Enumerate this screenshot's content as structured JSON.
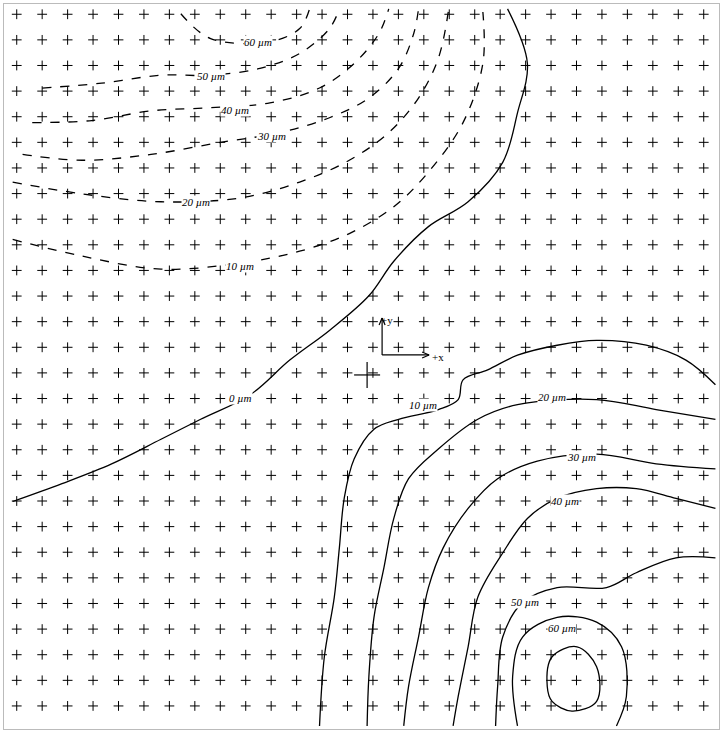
{
  "chart_data": {
    "type": "line",
    "grid": true,
    "tick_labels": false,
    "xlim": [
      -14.5,
      13.6
    ],
    "ylim": [
      -13.9,
      14.4
    ],
    "xticks": [
      -14,
      -13,
      -12,
      -11,
      -10,
      -9,
      -8,
      -7,
      -6,
      -5,
      -4,
      -3,
      -2,
      -1,
      0,
      1,
      2,
      3,
      4,
      5,
      6,
      7,
      8,
      9,
      10,
      11,
      12,
      13
    ],
    "yticks": [
      -13,
      -12,
      -11,
      -10,
      -9,
      -8,
      -7,
      -6,
      -5,
      -4,
      -3,
      -2,
      -1,
      0,
      1,
      2,
      3,
      4,
      5,
      6,
      7,
      8,
      9,
      10,
      11,
      12,
      13,
      14
    ],
    "origin": [
      -0.23,
      -0.08
    ],
    "axis_labels": [
      {
        "text": "+y",
        "x": 0.54,
        "y": 2.05
      },
      {
        "text": "+x",
        "x": 2.57,
        "y": 0.62
      }
    ],
    "series": [
      {
        "name": "0 µm",
        "line_style": "solid",
        "color": "#000000",
        "label_x": -5.21,
        "label_y": -0.97,
        "x": [
          -14.16,
          -12.22,
          -10.27,
          -8.33,
          -6.77,
          -4.82,
          -3.27,
          -1.71,
          -0.16,
          0.82,
          2.18,
          3.74,
          5.1,
          5.68,
          6.07,
          5.29
        ],
        "y": [
          -5.02,
          -4.32,
          -3.55,
          -2.59,
          -1.81,
          -0.85,
          0.5,
          1.66,
          3.01,
          4.36,
          5.71,
          6.68,
          8.22,
          10.15,
          12.08,
          14.21
        ]
      },
      {
        "name": "10 µm",
        "line_style": "solid",
        "color": "#000000",
        "label_x": 1.98,
        "label_y": -1.24,
        "x": [
          13.46,
          12.3,
          10.74,
          8.79,
          7.24,
          5.68,
          4.51,
          3.54,
          3.35,
          2.57,
          1.01,
          0.04,
          -0.74,
          -1.13,
          -1.32,
          -1.52,
          -1.91,
          -2.1
        ],
        "y": [
          -0.46,
          0.5,
          1.08,
          1.27,
          1.08,
          0.69,
          0.12,
          -0.27,
          -1.04,
          -1.43,
          -1.81,
          -2.2,
          -3.36,
          -4.9,
          -6.83,
          -8.76,
          -11.08,
          -13.78
        ]
      },
      {
        "name": "20 µm",
        "line_style": "solid",
        "color": "#000000",
        "label_x": 7.04,
        "label_y": -0.93,
        "x": [
          13.46,
          11.13,
          8.79,
          5.68,
          4.12,
          2.57,
          1.4,
          0.82,
          0.43,
          0.04,
          -0.16,
          -0.23
        ],
        "y": [
          -1.81,
          -1.43,
          -1.04,
          -1.24,
          -1.81,
          -2.97,
          -4.13,
          -5.68,
          -7.61,
          -9.54,
          -11.85,
          -13.78
        ]
      },
      {
        "name": "30 µm",
        "line_style": "solid",
        "color": "#000000",
        "label_x": 8.21,
        "label_y": -3.28,
        "x": [
          13.46,
          11.13,
          8.79,
          6.46,
          4.9,
          3.74,
          2.76,
          2.18,
          1.79,
          1.4,
          1.21
        ],
        "y": [
          -3.75,
          -3.55,
          -3.17,
          -3.44,
          -4.13,
          -5.29,
          -6.83,
          -8.38,
          -10.31,
          -12.24,
          -13.78
        ]
      },
      {
        "name": "40 µm",
        "line_style": "solid",
        "color": "#000000",
        "label_x": 7.55,
        "label_y": -5.0,
        "x": [
          13.46,
          11.91,
          10.35,
          8.79,
          7.24,
          6.07,
          5.1,
          4.12,
          3.74,
          3.35,
          3.15
        ],
        "y": [
          -5.29,
          -4.9,
          -4.52,
          -4.52,
          -4.9,
          -5.68,
          -7.03,
          -8.76,
          -10.69,
          -12.63,
          -13.78
        ]
      },
      {
        "name": "50 µm",
        "line_style": "solid",
        "color": "#000000",
        "label_x": 5.98,
        "label_y": -8.96,
        "x": [
          13.46,
          11.91,
          10.35,
          9.18,
          7.24,
          5.88,
          5.1,
          4.9,
          4.82
        ],
        "y": [
          -7.22,
          -7.22,
          -7.8,
          -8.38,
          -8.38,
          -8.96,
          -10.31,
          -12.24,
          -13.78
        ]
      },
      {
        "name": "60 µm",
        "line_style": "solid",
        "color": "#000000",
        "label_x": 7.43,
        "label_y": -9.96,
        "x": [
          5.68,
          5.49,
          5.88,
          7.24,
          8.79,
          9.77,
          9.96,
          9.57
        ],
        "y": [
          -13.78,
          -11.85,
          -10.31,
          -9.54,
          -9.73,
          -10.69,
          -12.63,
          -13.78
        ]
      },
      {
        "line_style": "solid",
        "color": "#000000",
        "x": [
          6.85,
          7.04,
          8.02,
          8.79,
          8.79,
          7.82,
          7.04,
          6.85
        ],
        "y": [
          -12.24,
          -11.08,
          -10.69,
          -11.47,
          -12.82,
          -13.2,
          -12.82,
          -12.24
        ]
      },
      {
        "name": "10 µm",
        "line_style": "dashed",
        "color": "#000000",
        "label_x": -5.21,
        "label_y": 4.17,
        "x": [
          -14.16,
          -11.44,
          -8.33,
          -5.21,
          -2.88,
          -0.93,
          0.82,
          2.18,
          3.54,
          4.32,
          4.32
        ],
        "y": [
          5.21,
          4.56,
          4.05,
          4.29,
          4.75,
          5.44,
          6.49,
          7.84,
          9.77,
          12.08,
          14.09
        ]
      },
      {
        "name": "20 µm",
        "line_style": "dashed",
        "color": "#000000",
        "label_x": -6.96,
        "label_y": 6.68,
        "x": [
          -14.16,
          -11.44,
          -8.33,
          -5.21,
          -2.88,
          -0.93,
          0.62,
          1.79,
          2.57,
          2.96
        ],
        "y": [
          7.45,
          6.99,
          6.68,
          6.83,
          7.45,
          8.3,
          9.38,
          10.73,
          12.28,
          14.09
        ]
      },
      {
        "name": "30 µm",
        "line_style": "dashed",
        "color": "#000000",
        "label_x": -3.97,
        "label_y": 9.23,
        "x": [
          -13.77,
          -11.44,
          -8.72,
          -5.99,
          -3.66,
          -1.71,
          -0.16,
          1.01,
          1.6,
          1.79
        ],
        "y": [
          8.53,
          8.3,
          8.53,
          9.0,
          9.38,
          9.96,
          10.73,
          11.89,
          13.24,
          14.21
        ]
      },
      {
        "name": "40 µm",
        "line_style": "dashed",
        "color": "#000000",
        "label_x": -5.41,
        "label_y": 10.27,
        "x": [
          -13.39,
          -11.05,
          -8.72,
          -6.38,
          -4.05,
          -2.1,
          -0.74,
          0.23,
          0.62
        ],
        "y": [
          9.77,
          9.85,
          10.23,
          10.35,
          10.54,
          11.12,
          12.08,
          13.24,
          14.21
        ]
      },
      {
        "name": "50 µm",
        "line_style": "dashed",
        "color": "#000000",
        "label_x": -6.38,
        "label_y": 11.58,
        "x": [
          -13.0,
          -10.66,
          -8.33,
          -6.38,
          -4.44,
          -2.88,
          -1.71,
          -1.32
        ],
        "y": [
          11.12,
          11.31,
          11.62,
          11.62,
          11.89,
          12.47,
          13.44,
          14.21
        ]
      },
      {
        "name": "60 µm",
        "line_style": "dashed",
        "color": "#000000",
        "label_x": -4.51,
        "label_y": 12.93,
        "x": [
          -7.55,
          -6.38,
          -4.05,
          -2.88,
          -2.49
        ],
        "y": [
          14.02,
          13.05,
          12.93,
          13.44,
          14.21
        ]
      }
    ]
  }
}
